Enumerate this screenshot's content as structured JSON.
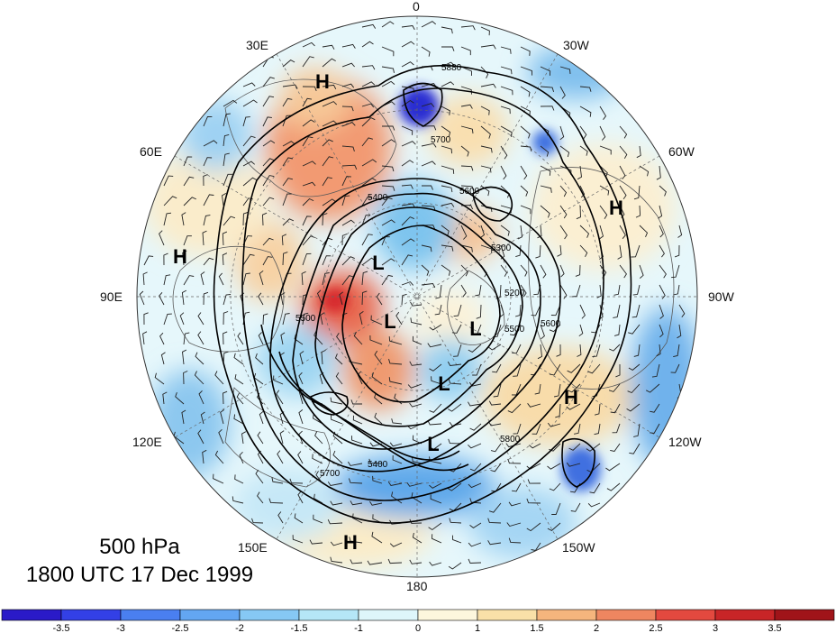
{
  "title": {
    "level": "500 hPa",
    "time": "1800 UTC 17 Dec 1999"
  },
  "longitude_labels": [
    {
      "id": "lon-0",
      "text": "0"
    },
    {
      "id": "lon-30w",
      "text": "30W"
    },
    {
      "id": "lon-60w",
      "text": "60W"
    },
    {
      "id": "lon-90w",
      "text": "90W"
    },
    {
      "id": "lon-120w",
      "text": "120W"
    },
    {
      "id": "lon-150w",
      "text": "150W"
    },
    {
      "id": "lon-180",
      "text": "180"
    },
    {
      "id": "lon-150e",
      "text": "150E"
    },
    {
      "id": "lon-120e",
      "text": "120E"
    },
    {
      "id": "lon-90e",
      "text": "90E"
    },
    {
      "id": "lon-60e",
      "text": "60E"
    },
    {
      "id": "lon-30e",
      "text": "30E"
    }
  ],
  "pressure_centers": [
    {
      "type": "H"
    },
    {
      "type": "H"
    },
    {
      "type": "H"
    },
    {
      "type": "H"
    },
    {
      "type": "H"
    },
    {
      "type": "L"
    },
    {
      "type": "L"
    },
    {
      "type": "L"
    },
    {
      "type": "L"
    },
    {
      "type": "L"
    }
  ],
  "contour_labels": [
    "5880",
    "5700",
    "5600",
    "5500",
    "5400",
    "5300",
    "5200",
    "5700",
    "5800",
    "5600",
    "5500",
    "5400"
  ],
  "colorbar": {
    "ticks": [
      "-3.5",
      "-3",
      "-2.5",
      "-2",
      "-1.5",
      "-1",
      "0",
      "1",
      "1.5",
      "2",
      "2.5",
      "3",
      "3.5"
    ],
    "colors": [
      "#2a1ac8",
      "#3340e6",
      "#4a7ff0",
      "#63a6f2",
      "#86c8f4",
      "#b5e6f7",
      "#def6fa",
      "#fdf7dd",
      "#f9e0a8",
      "#f5b57d",
      "#ee8660",
      "#e3493f",
      "#c82527",
      "#a01419"
    ]
  },
  "colors": {
    "land_lines": "#5a5a5a",
    "contours": "#000000",
    "grid": "#555555"
  }
}
